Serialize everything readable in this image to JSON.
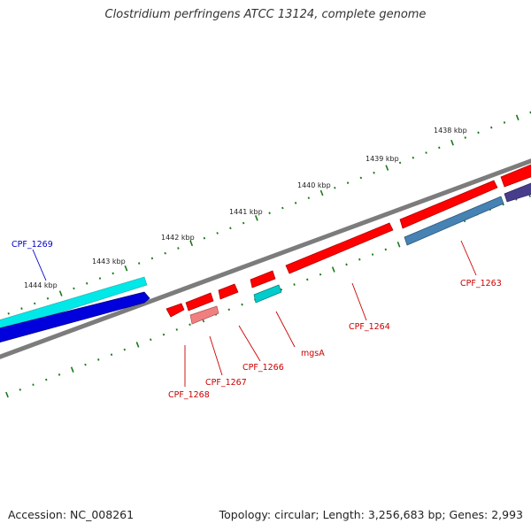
{
  "title": "Clostridium perfringens ATCC 13124, complete genome",
  "footer": {
    "accession": "Accession: NC_008261",
    "summary": "Topology: circular; Length: 3,256,683 bp; Genes: 2,993"
  },
  "scale_labels": [
    "1438 kbp",
    "1439 kbp",
    "1440 kbp",
    "1441 kbp",
    "1442 kbp",
    "1443 kbp",
    "1444 kbp"
  ],
  "gene_labels": [
    {
      "id": "cpf1269",
      "text": "CPF_1269",
      "color": "#0000cc"
    },
    {
      "id": "cpf1263",
      "text": "CPF_1263",
      "color": "#cc0000"
    },
    {
      "id": "cpf1264",
      "text": "CPF_1264",
      "color": "#cc0000"
    },
    {
      "id": "mgsa",
      "text": "mgsA",
      "color": "#cc0000"
    },
    {
      "id": "cpf1266",
      "text": "CPF_1266",
      "color": "#cc0000"
    },
    {
      "id": "cpf1267",
      "text": "CPF_1267",
      "color": "#cc0000"
    },
    {
      "id": "cpf1268",
      "text": "CPF_1268",
      "color": "#cc0000"
    }
  ],
  "colors": {
    "backbone": "#808080",
    "tick": "#1a7a1a",
    "cds_forward": "#ff0000",
    "rna_light": "#f08080",
    "cyan": "#00e5e5",
    "blue": "#0000dd",
    "steel_blue": "#4682b4",
    "dark_slate": "#483d8b"
  }
}
